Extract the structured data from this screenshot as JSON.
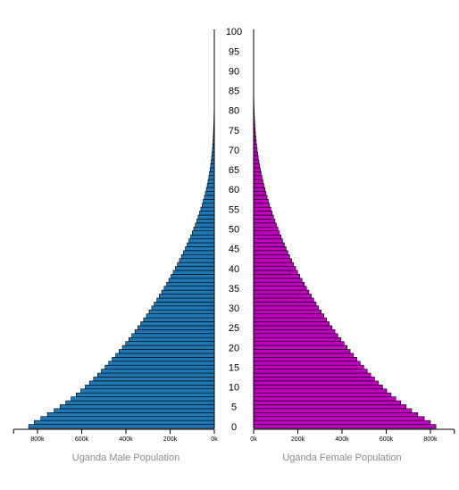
{
  "chart_data": {
    "type": "bar",
    "orientation": "horizontal-population-pyramid",
    "ages": [
      0,
      1,
      2,
      3,
      4,
      5,
      6,
      7,
      8,
      9,
      10,
      11,
      12,
      13,
      14,
      15,
      16,
      17,
      18,
      19,
      20,
      21,
      22,
      23,
      24,
      25,
      26,
      27,
      28,
      29,
      30,
      31,
      32,
      33,
      34,
      35,
      36,
      37,
      38,
      39,
      40,
      41,
      42,
      43,
      44,
      45,
      46,
      47,
      48,
      49,
      50,
      51,
      52,
      53,
      54,
      55,
      56,
      57,
      58,
      59,
      60,
      61,
      62,
      63,
      64,
      65,
      66,
      67,
      68,
      69,
      70,
      71,
      72,
      73,
      74,
      75,
      76,
      77,
      78,
      79,
      80,
      81,
      82,
      83,
      84,
      85,
      86,
      87,
      88,
      89,
      90,
      91,
      92,
      93,
      94,
      95,
      96,
      97,
      98,
      99,
      100
    ],
    "age_ticks": [
      "0",
      "5",
      "10",
      "15",
      "20",
      "25",
      "30",
      "35",
      "40",
      "45",
      "50",
      "55",
      "60",
      "65",
      "70",
      "75",
      "80",
      "85",
      "90",
      "95",
      "100"
    ],
    "series": [
      {
        "name": "Uganda Male Population",
        "color": "#1f77b4",
        "values": [
          840000,
          815000,
          785000,
          755000,
          725000,
          698000,
          672000,
          648000,
          625000,
          604000,
          584000,
          565000,
          546000,
          528000,
          511000,
          494000,
          478000,
          462000,
          446000,
          431000,
          416000,
          401000,
          387000,
          373000,
          359000,
          346000,
          333000,
          320000,
          307000,
          295000,
          283000,
          272000,
          260000,
          249000,
          238000,
          227000,
          216000,
          206000,
          196000,
          186000,
          176000,
          167000,
          158000,
          149000,
          140000,
          131000,
          123000,
          115000,
          107000,
          100000,
          93000,
          86000,
          79000,
          73000,
          67000,
          61000,
          55000,
          50000,
          45000,
          40500,
          36000,
          32000,
          28500,
          25000,
          22000,
          19000,
          16500,
          14200,
          12200,
          10300,
          8700,
          7300,
          6100,
          5000,
          4100,
          3300,
          2600,
          2000,
          1550,
          1200,
          900,
          680,
          500,
          370,
          270,
          195,
          140,
          100,
          70,
          50,
          35,
          25,
          17,
          12,
          8,
          5,
          3,
          2,
          1,
          1,
          0
        ]
      },
      {
        "name": "Uganda Female Population",
        "color": "#bf00bf",
        "values": [
          825000,
          800000,
          772000,
          743000,
          715000,
          690000,
          666000,
          643000,
          622000,
          602000,
          583000,
          565000,
          547000,
          530000,
          514000,
          498000,
          482000,
          467000,
          452000,
          437000,
          423000,
          409000,
          395000,
          381000,
          368000,
          355000,
          342000,
          330000,
          318000,
          306000,
          294000,
          283000,
          272000,
          261000,
          250000,
          239000,
          229000,
          219000,
          209000,
          199000,
          190000,
          181000,
          172000,
          163000,
          155000,
          147000,
          139000,
          131000,
          124000,
          117000,
          110000,
          103000,
          96500,
          90000,
          84000,
          78000,
          72000,
          66500,
          61000,
          56000,
          51000,
          46500,
          42000,
          38000,
          34000,
          30500,
          27000,
          24000,
          21000,
          18500,
          16000,
          13800,
          11800,
          10000,
          8400,
          7000,
          5800,
          4700,
          3800,
          3000,
          2350,
          1800,
          1380,
          1040,
          770,
          560,
          400,
          285,
          200,
          140,
          95,
          65,
          44,
          30,
          20,
          13,
          8,
          5,
          3,
          2,
          1
        ]
      }
    ],
    "x_ticks": [
      "800k",
      "600k",
      "400k",
      "200k",
      "0k"
    ],
    "x_tick_values": [
      800000,
      600000,
      400000,
      200000,
      0
    ],
    "xlim": [
      0,
      900000
    ],
    "grid": false
  }
}
